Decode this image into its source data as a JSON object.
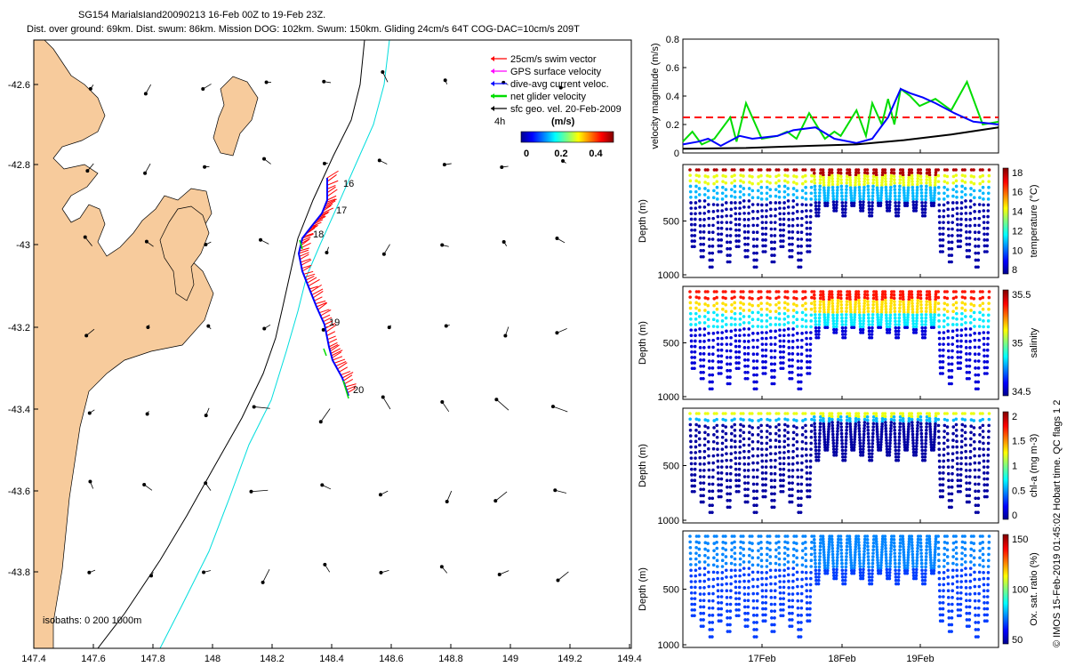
{
  "header": {
    "title": "SG154 MarialsIand20090213 16-Feb 00Z to 19-Feb 23Z.",
    "subtitle": "Dist. over ground: 69km. Dist. swum: 86km. Mission DOG: 102km. Swum: 150km. Gliding 24cm/s 64T COG-DAC=10cm/s 209T"
  },
  "map": {
    "land_color": "#f7cb9c",
    "isobaths_label": "isobaths: 0   200  1000m",
    "legend": [
      {
        "label": "25cm/s swim vector",
        "color": "#ff0000"
      },
      {
        "label": "GPS surface velocity",
        "color": "#ff00ff"
      },
      {
        "label": "dive-avg current veloc.",
        "color": "#0000ff"
      },
      {
        "label": "net glider velocity",
        "color": "#00dd00"
      },
      {
        "label": "sfc geo. vel. 20-Feb-2009",
        "color": "#000000"
      }
    ],
    "interval_label": "4h",
    "colorbar": {
      "title": "(m/s)",
      "ticks": [
        "0",
        "0.2",
        "0.4"
      ]
    },
    "day_markers": [
      "16",
      "17",
      "18",
      "19",
      "20"
    ],
    "x_ticks": [
      "147.4",
      "147.6",
      "147.8",
      "148",
      "148.2",
      "148.4",
      "148.6",
      "148.8",
      "149",
      "149.2",
      "149.4"
    ],
    "y_ticks": [
      "-42.6",
      "-42.8",
      "-43",
      "-43.2",
      "-43.4",
      "-43.6",
      "-43.8"
    ]
  },
  "copyright": "© IMOS 15-Feb-2019 01:45:02 Hobart time. QC flags 1 2",
  "chart_data": [
    {
      "type": "line",
      "ylabel": "velocity magnitude (m/s)",
      "ylim": [
        0,
        0.8
      ],
      "y_ticks": [
        "0",
        "0.2",
        "0.4",
        "0.6",
        "0.8"
      ],
      "x_ticks": [
        "17Feb",
        "18Feb",
        "19Feb"
      ],
      "series": [
        {
          "color": "#ff0000",
          "style": "dashed",
          "x": [
            0,
            1
          ],
          "y": [
            0.25,
            0.25
          ]
        },
        {
          "color": "#00dd00",
          "x": [
            0,
            0.03,
            0.06,
            0.1,
            0.15,
            0.17,
            0.2,
            0.25,
            0.3,
            0.33,
            0.36,
            0.4,
            0.45,
            0.48,
            0.5,
            0.55,
            0.58,
            0.6,
            0.63,
            0.65,
            0.67,
            0.69,
            0.72,
            0.75,
            0.8,
            0.85,
            0.9,
            0.95,
            1.0
          ],
          "y": [
            0.08,
            0.15,
            0.06,
            0.1,
            0.25,
            0.08,
            0.35,
            0.1,
            0.12,
            0.15,
            0.1,
            0.28,
            0.1,
            0.15,
            0.12,
            0.3,
            0.12,
            0.35,
            0.2,
            0.38,
            0.2,
            0.45,
            0.4,
            0.33,
            0.38,
            0.3,
            0.5,
            0.2,
            0.22
          ]
        },
        {
          "color": "#0000ff",
          "x": [
            0,
            0.05,
            0.08,
            0.12,
            0.18,
            0.22,
            0.3,
            0.35,
            0.42,
            0.48,
            0.55,
            0.6,
            0.65,
            0.69,
            0.72,
            0.76,
            0.8,
            0.86,
            0.92,
            1.0
          ],
          "y": [
            0.06,
            0.08,
            0.1,
            0.05,
            0.12,
            0.1,
            0.12,
            0.16,
            0.18,
            0.1,
            0.07,
            0.1,
            0.25,
            0.45,
            0.42,
            0.39,
            0.35,
            0.28,
            0.22,
            0.2
          ]
        },
        {
          "color": "#000000",
          "x": [
            0,
            0.2,
            0.4,
            0.55,
            0.7,
            0.85,
            1.0
          ],
          "y": [
            0.03,
            0.035,
            0.05,
            0.06,
            0.09,
            0.13,
            0.18
          ]
        }
      ]
    },
    {
      "type": "scatter",
      "ylabel": "Depth (m)",
      "ylim": [
        1000,
        0
      ],
      "y_ticks": [
        "500",
        "1000"
      ],
      "colorbar_label": "temperature (°C)",
      "colorbar_ticks": [
        "8",
        "10",
        "12",
        "14",
        "16",
        "18"
      ],
      "colormap": "jet",
      "color_trend": "warm-at-surface"
    },
    {
      "type": "scatter",
      "ylabel": "Depth (m)",
      "ylim": [
        1000,
        0
      ],
      "y_ticks": [
        "500",
        "1000"
      ],
      "colorbar_label": "salinity",
      "colorbar_ticks": [
        "34.5",
        "35",
        "35.5"
      ],
      "colormap": "jet",
      "color_trend": "high-at-surface"
    },
    {
      "type": "scatter",
      "ylabel": "Depth (m)",
      "ylim": [
        1000,
        0
      ],
      "y_ticks": [
        "500",
        "1000"
      ],
      "colorbar_label": "chl-a (mg m-3)",
      "colorbar_ticks": [
        "0",
        "0.5",
        "1",
        "1.5",
        "2"
      ],
      "colormap": "jet",
      "color_trend": "high-at-surface-thin"
    },
    {
      "type": "scatter",
      "ylabel": "Depth (m)",
      "ylim": [
        1000,
        0
      ],
      "y_ticks": [
        "500",
        "1000"
      ],
      "x_ticks": [
        "17Feb",
        "18Feb",
        "19Feb"
      ],
      "colorbar_label": "Ox. sat. ratio (%)",
      "colorbar_ticks": [
        "50",
        "100",
        "150"
      ],
      "colormap": "jet",
      "color_trend": "uniform-low"
    }
  ]
}
